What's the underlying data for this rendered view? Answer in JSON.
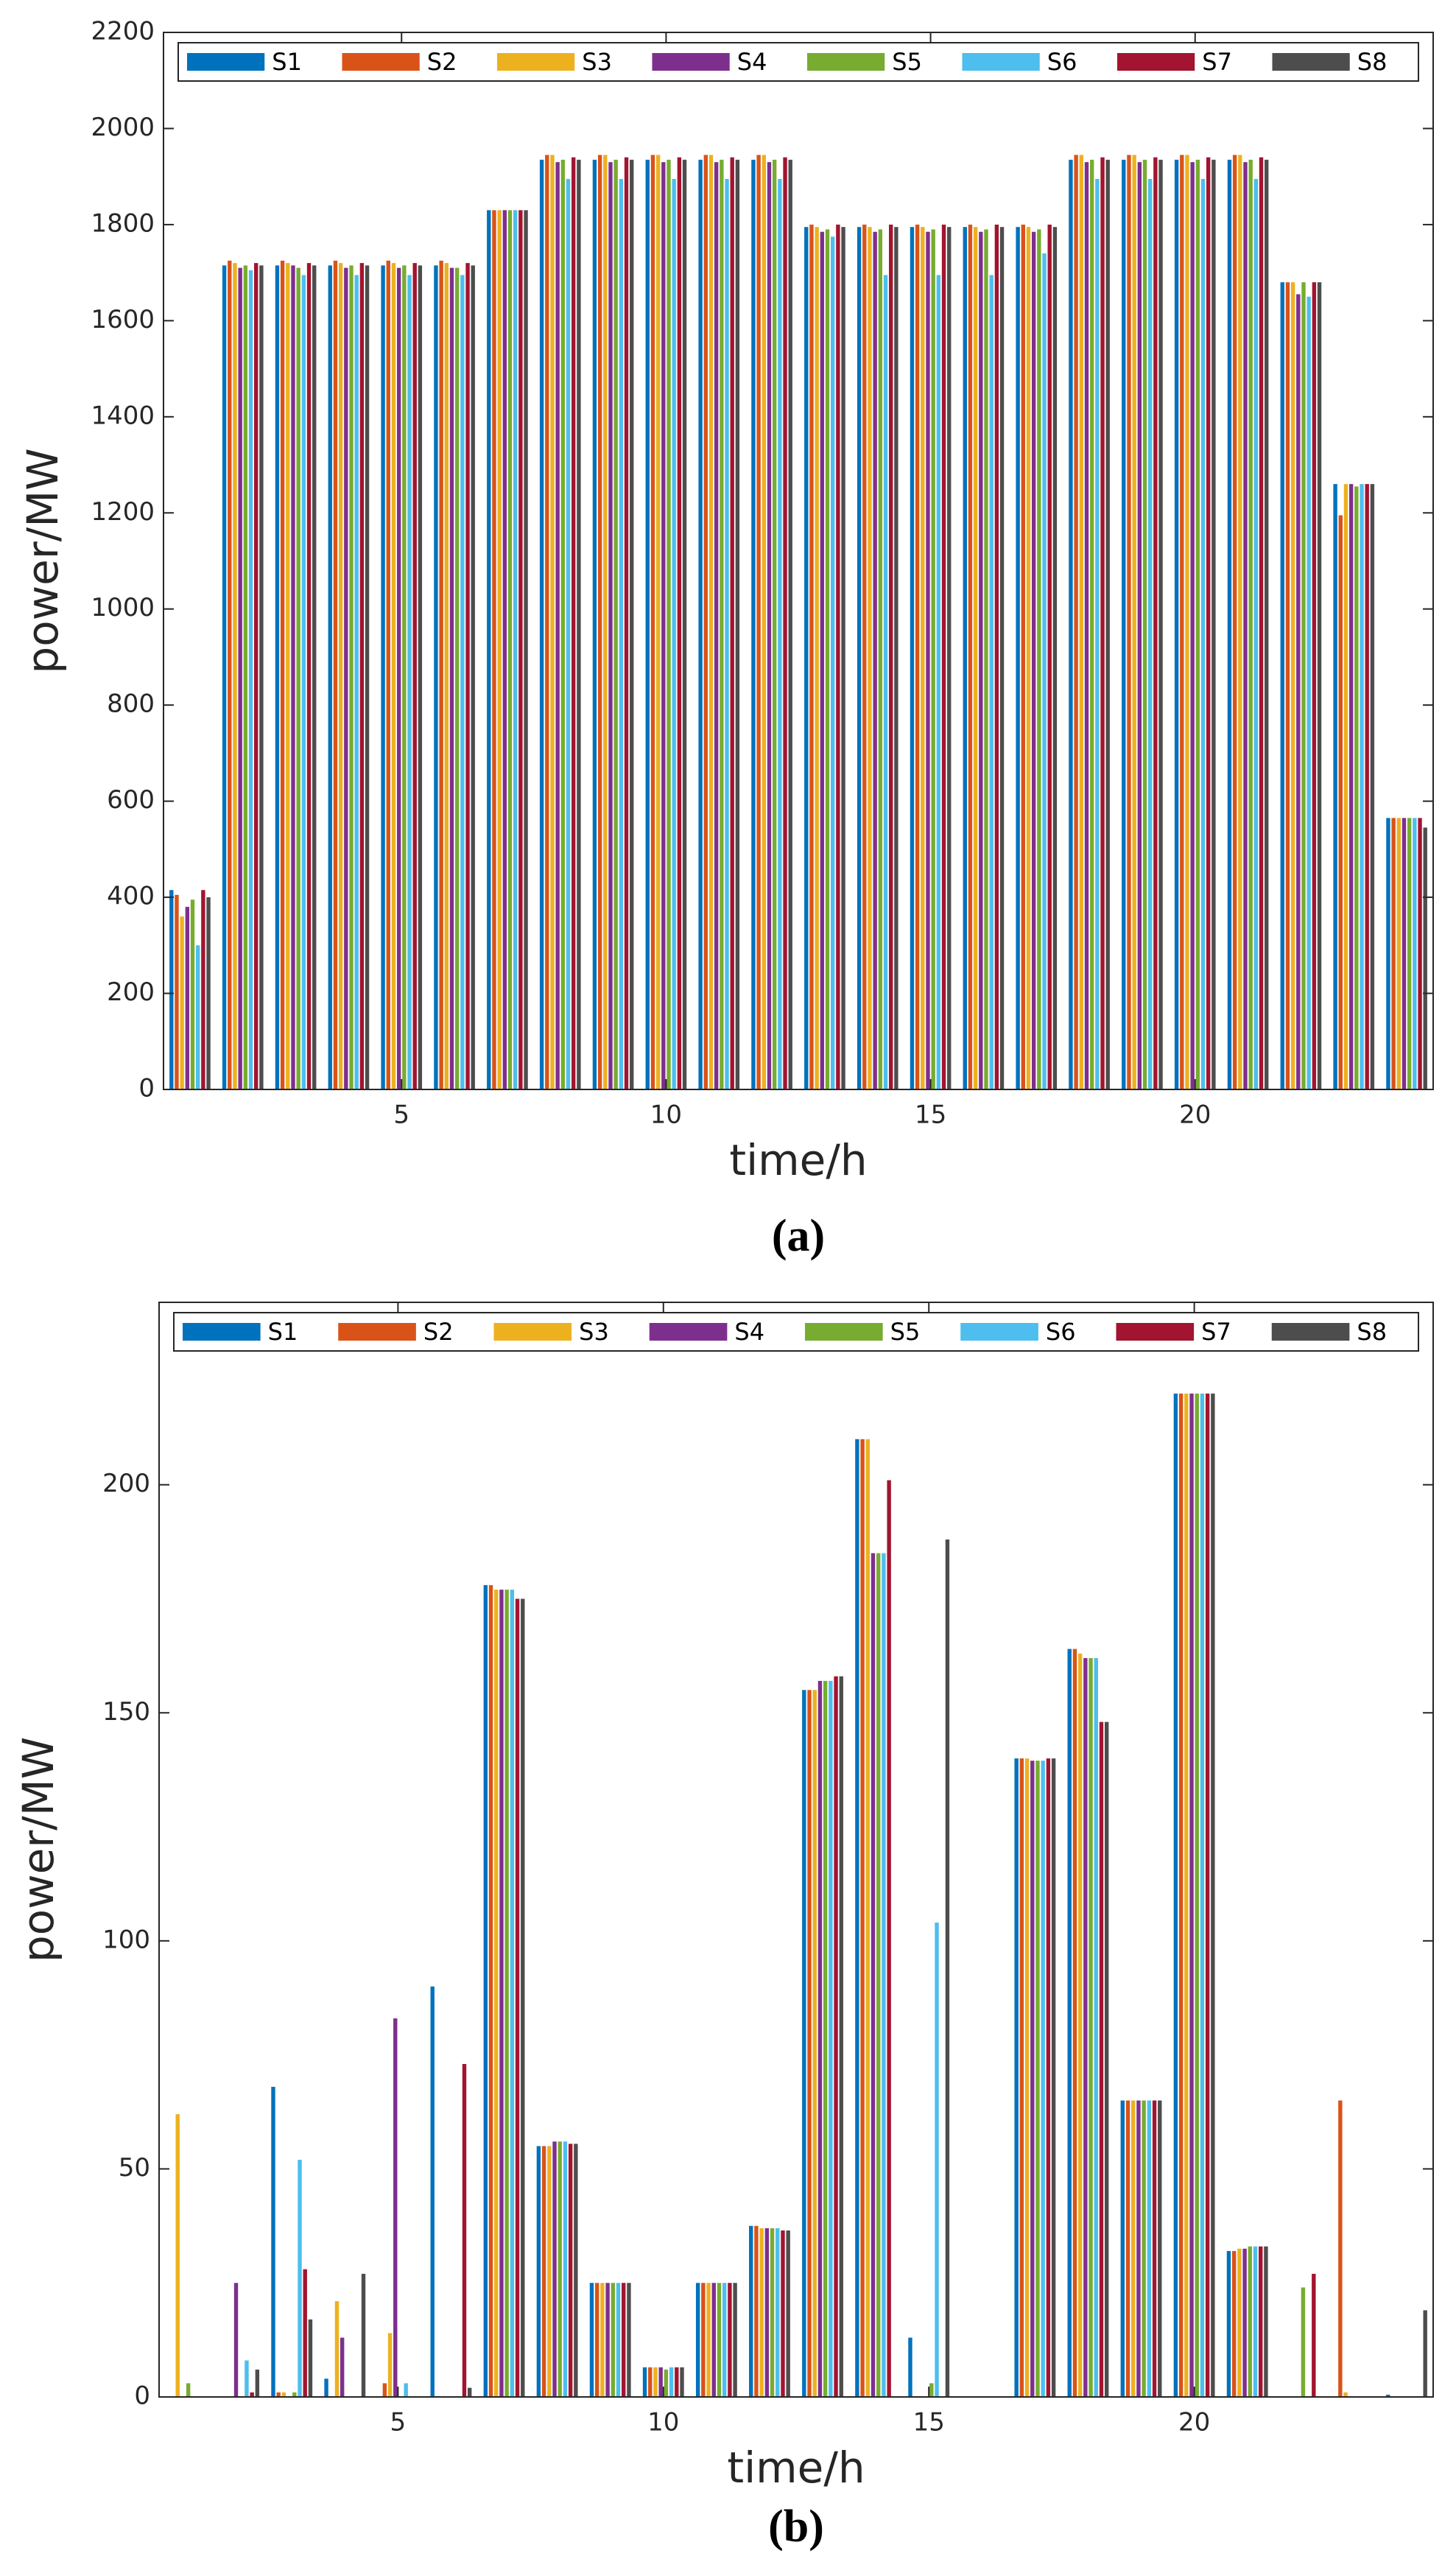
{
  "chart_data": [
    {
      "type": "bar",
      "caption": "(a)",
      "xlabel": "time/h",
      "ylabel": "power/MW",
      "x": [
        1,
        2,
        3,
        4,
        5,
        6,
        7,
        8,
        9,
        10,
        11,
        12,
        13,
        14,
        15,
        16,
        17,
        18,
        19,
        20,
        21,
        22,
        23,
        24
      ],
      "xlim": [
        0.5,
        24.5
      ],
      "xticks": [
        5,
        10,
        15,
        20
      ],
      "ylim": [
        0,
        2200
      ],
      "yticks": [
        0,
        200,
        400,
        600,
        800,
        1000,
        1200,
        1400,
        1600,
        1800,
        2000,
        2200
      ],
      "legend": "top",
      "grid": false,
      "series": [
        {
          "name": "S1",
          "color": "#0072BD",
          "values": [
            415,
            1715,
            1715,
            1715,
            1715,
            1715,
            1830,
            1935,
            1935,
            1935,
            1935,
            1935,
            1795,
            1795,
            1795,
            1795,
            1795,
            1935,
            1935,
            1935,
            1935,
            1680,
            1260,
            565
          ]
        },
        {
          "name": "S2",
          "color": "#D95319",
          "values": [
            405,
            1725,
            1725,
            1725,
            1725,
            1725,
            1830,
            1945,
            1945,
            1945,
            1945,
            1945,
            1800,
            1800,
            1800,
            1800,
            1800,
            1945,
            1945,
            1945,
            1945,
            1680,
            1195,
            565
          ]
        },
        {
          "name": "S3",
          "color": "#EDB120",
          "values": [
            360,
            1720,
            1720,
            1720,
            1720,
            1720,
            1830,
            1945,
            1945,
            1945,
            1945,
            1945,
            1795,
            1795,
            1795,
            1795,
            1795,
            1945,
            1945,
            1945,
            1945,
            1680,
            1260,
            565
          ]
        },
        {
          "name": "S4",
          "color": "#7E2F8E",
          "values": [
            380,
            1710,
            1715,
            1710,
            1710,
            1710,
            1830,
            1930,
            1930,
            1930,
            1930,
            1930,
            1785,
            1785,
            1785,
            1785,
            1785,
            1930,
            1930,
            1930,
            1930,
            1655,
            1260,
            565
          ]
        },
        {
          "name": "S5",
          "color": "#77AC30",
          "values": [
            395,
            1715,
            1710,
            1715,
            1715,
            1710,
            1830,
            1935,
            1935,
            1935,
            1935,
            1935,
            1790,
            1790,
            1790,
            1790,
            1790,
            1935,
            1935,
            1935,
            1935,
            1680,
            1255,
            565
          ]
        },
        {
          "name": "S6",
          "color": "#4DBEEE",
          "values": [
            300,
            1705,
            1695,
            1695,
            1695,
            1695,
            1830,
            1895,
            1895,
            1895,
            1895,
            1895,
            1775,
            1695,
            1695,
            1695,
            1740,
            1895,
            1895,
            1895,
            1895,
            1650,
            1260,
            565
          ]
        },
        {
          "name": "S7",
          "color": "#A2142F",
          "values": [
            415,
            1720,
            1720,
            1720,
            1720,
            1720,
            1830,
            1940,
            1940,
            1940,
            1940,
            1940,
            1800,
            1800,
            1800,
            1800,
            1800,
            1940,
            1940,
            1940,
            1940,
            1680,
            1260,
            565
          ]
        },
        {
          "name": "S8",
          "color": "#4D4D4D",
          "values": [
            400,
            1715,
            1715,
            1715,
            1715,
            1715,
            1830,
            1935,
            1935,
            1935,
            1935,
            1935,
            1795,
            1795,
            1795,
            1795,
            1795,
            1935,
            1935,
            1935,
            1935,
            1680,
            1260,
            545
          ]
        }
      ]
    },
    {
      "type": "bar",
      "caption": "(b)",
      "xlabel": "time/h",
      "ylabel": "power/MW",
      "x": [
        1,
        2,
        3,
        4,
        5,
        6,
        7,
        8,
        9,
        10,
        11,
        12,
        13,
        14,
        15,
        16,
        17,
        18,
        19,
        20,
        21,
        22,
        23,
        24
      ],
      "xlim": [
        0.5,
        24.5
      ],
      "xticks": [
        5,
        10,
        15,
        20
      ],
      "ylim": [
        0,
        240
      ],
      "yticks": [
        0,
        50,
        100,
        150,
        200
      ],
      "legend": "top",
      "grid": false,
      "series": [
        {
          "name": "S1",
          "color": "#0072BD",
          "values": [
            0,
            0,
            68,
            4,
            0,
            90,
            178,
            55,
            25,
            6.5,
            25,
            37.5,
            155,
            210,
            13,
            0,
            140,
            164,
            65,
            220,
            32,
            0,
            0,
            0.5
          ]
        },
        {
          "name": "S2",
          "color": "#D95319",
          "values": [
            0,
            0,
            1,
            0,
            3,
            0,
            178,
            55,
            25,
            6.5,
            25,
            37.5,
            155,
            210,
            0,
            0,
            140,
            164,
            65,
            220,
            32,
            0,
            65,
            0
          ]
        },
        {
          "name": "S3",
          "color": "#EDB120",
          "values": [
            62,
            0,
            1,
            21,
            14,
            0,
            177,
            55,
            25,
            6.5,
            25,
            37,
            155,
            210,
            0,
            0,
            140,
            163,
            65,
            220,
            32.5,
            0,
            1,
            0
          ]
        },
        {
          "name": "S4",
          "color": "#7E2F8E",
          "values": [
            0,
            25,
            0,
            13,
            83,
            0,
            177,
            56,
            25,
            6.5,
            25,
            37,
            157,
            185,
            0,
            0,
            139.5,
            162,
            65,
            220,
            32.5,
            0,
            0,
            0
          ]
        },
        {
          "name": "S5",
          "color": "#77AC30",
          "values": [
            3,
            0,
            1,
            0,
            0,
            0,
            177,
            56,
            25,
            6,
            25,
            37,
            157,
            185,
            3,
            0,
            139.5,
            162,
            65,
            220,
            33,
            24,
            0,
            0
          ]
        },
        {
          "name": "S6",
          "color": "#4DBEEE",
          "values": [
            0,
            8,
            52,
            0,
            3,
            0,
            177,
            56,
            25,
            6.5,
            25,
            37,
            157,
            185,
            104,
            0,
            139.5,
            162,
            65,
            220,
            33,
            0,
            0,
            0
          ]
        },
        {
          "name": "S7",
          "color": "#A2142F",
          "values": [
            0,
            1,
            28,
            0,
            0,
            73,
            175,
            55.5,
            25,
            6.5,
            25,
            36.5,
            158,
            201,
            0,
            0,
            140,
            148,
            65,
            220,
            33,
            27,
            0,
            0
          ]
        },
        {
          "name": "S8",
          "color": "#4D4D4D",
          "values": [
            0,
            6,
            17,
            27,
            0,
            2,
            175,
            55.5,
            25,
            6.5,
            25,
            36.5,
            158,
            0,
            188,
            0,
            140,
            148,
            65,
            220,
            33,
            0,
            0,
            19
          ]
        }
      ]
    }
  ]
}
